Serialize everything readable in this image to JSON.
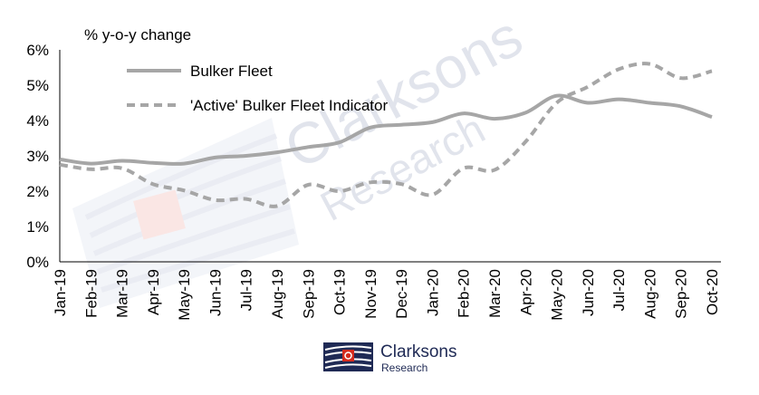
{
  "chart_data": {
    "type": "line",
    "ylabel": "% y-o-y change",
    "categories": [
      "Jan-19",
      "Feb-19",
      "Mar-19",
      "Apr-19",
      "May-19",
      "Jun-19",
      "Jul-19",
      "Aug-19",
      "Sep-19",
      "Oct-19",
      "Nov-19",
      "Dec-19",
      "Jan-20",
      "Feb-20",
      "Mar-20",
      "Apr-20",
      "May-20",
      "Jun-20",
      "Jul-20",
      "Aug-20",
      "Sep-20",
      "Oct-20"
    ],
    "ylim": [
      0,
      6
    ],
    "yticks": [
      "0%",
      "1%",
      "2%",
      "3%",
      "4%",
      "5%",
      "6%"
    ],
    "grid": false,
    "legend": "top-left",
    "series": [
      {
        "name": "Bulker Fleet",
        "style": "solid",
        "color": "#a6a6a6",
        "values": [
          2.9,
          2.78,
          2.86,
          2.8,
          2.78,
          2.95,
          3.0,
          3.1,
          3.25,
          3.38,
          3.8,
          3.88,
          3.95,
          4.2,
          4.05,
          4.22,
          4.7,
          4.5,
          4.6,
          4.5,
          4.4,
          4.1
        ]
      },
      {
        "name": "'Active' Bulker Fleet Indicator",
        "style": "dashed",
        "color": "#a6a6a6",
        "values": [
          2.75,
          2.62,
          2.65,
          2.2,
          2.02,
          1.75,
          1.78,
          1.58,
          2.18,
          2.0,
          2.25,
          2.2,
          1.9,
          2.65,
          2.6,
          3.4,
          4.5,
          4.95,
          5.45,
          5.6,
          5.2,
          5.4
        ]
      }
    ]
  },
  "watermark": {
    "line1": "Clarksons",
    "line2": "Research"
  },
  "logo": {
    "brand": "Clarksons",
    "sub": "Research",
    "navy": "#1f2a55",
    "red": "#d52b1e"
  }
}
